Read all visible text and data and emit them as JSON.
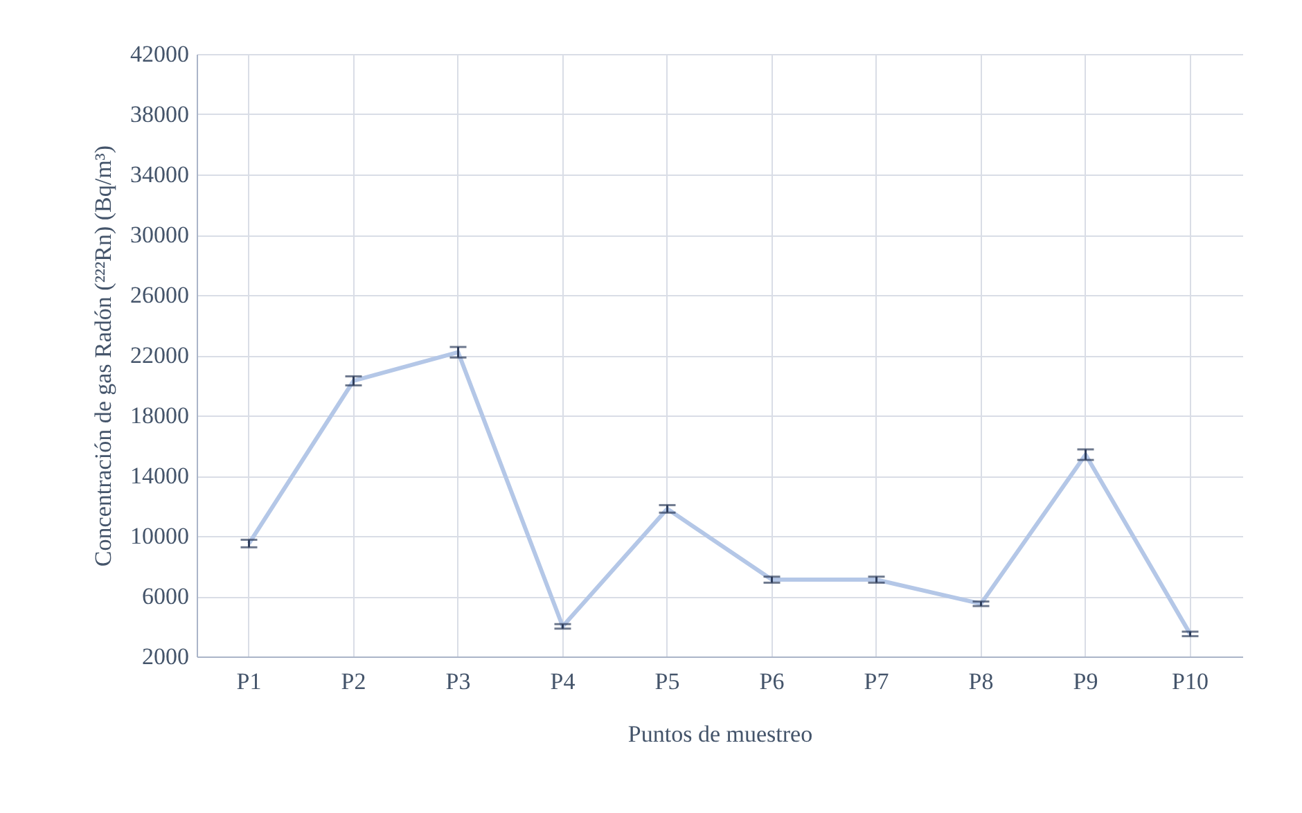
{
  "chart_data": {
    "type": "line",
    "xlabel": "Puntos de muestreo",
    "ylabel": "Concentración de gas Radón (²²²Rn) (Bq/m³)",
    "categories": [
      "P1",
      "P2",
      "P3",
      "P4",
      "P5",
      "P6",
      "P7",
      "P8",
      "P9",
      "P10"
    ],
    "series": [
      {
        "color": "#b4c7e7",
        "values": [
          9500,
          20300,
          22200,
          4000,
          11800,
          7100,
          7100,
          5500,
          15400,
          3500
        ],
        "errors": [
          250,
          300,
          350,
          150,
          250,
          200,
          200,
          150,
          350,
          150
        ]
      }
    ],
    "ylim": [
      2000,
      42000
    ],
    "yticks": [
      2000,
      6000,
      10000,
      14000,
      18000,
      22000,
      26000,
      30000,
      34000,
      38000,
      42000
    ],
    "grid": true,
    "marker": "none",
    "line_style": "solid"
  }
}
